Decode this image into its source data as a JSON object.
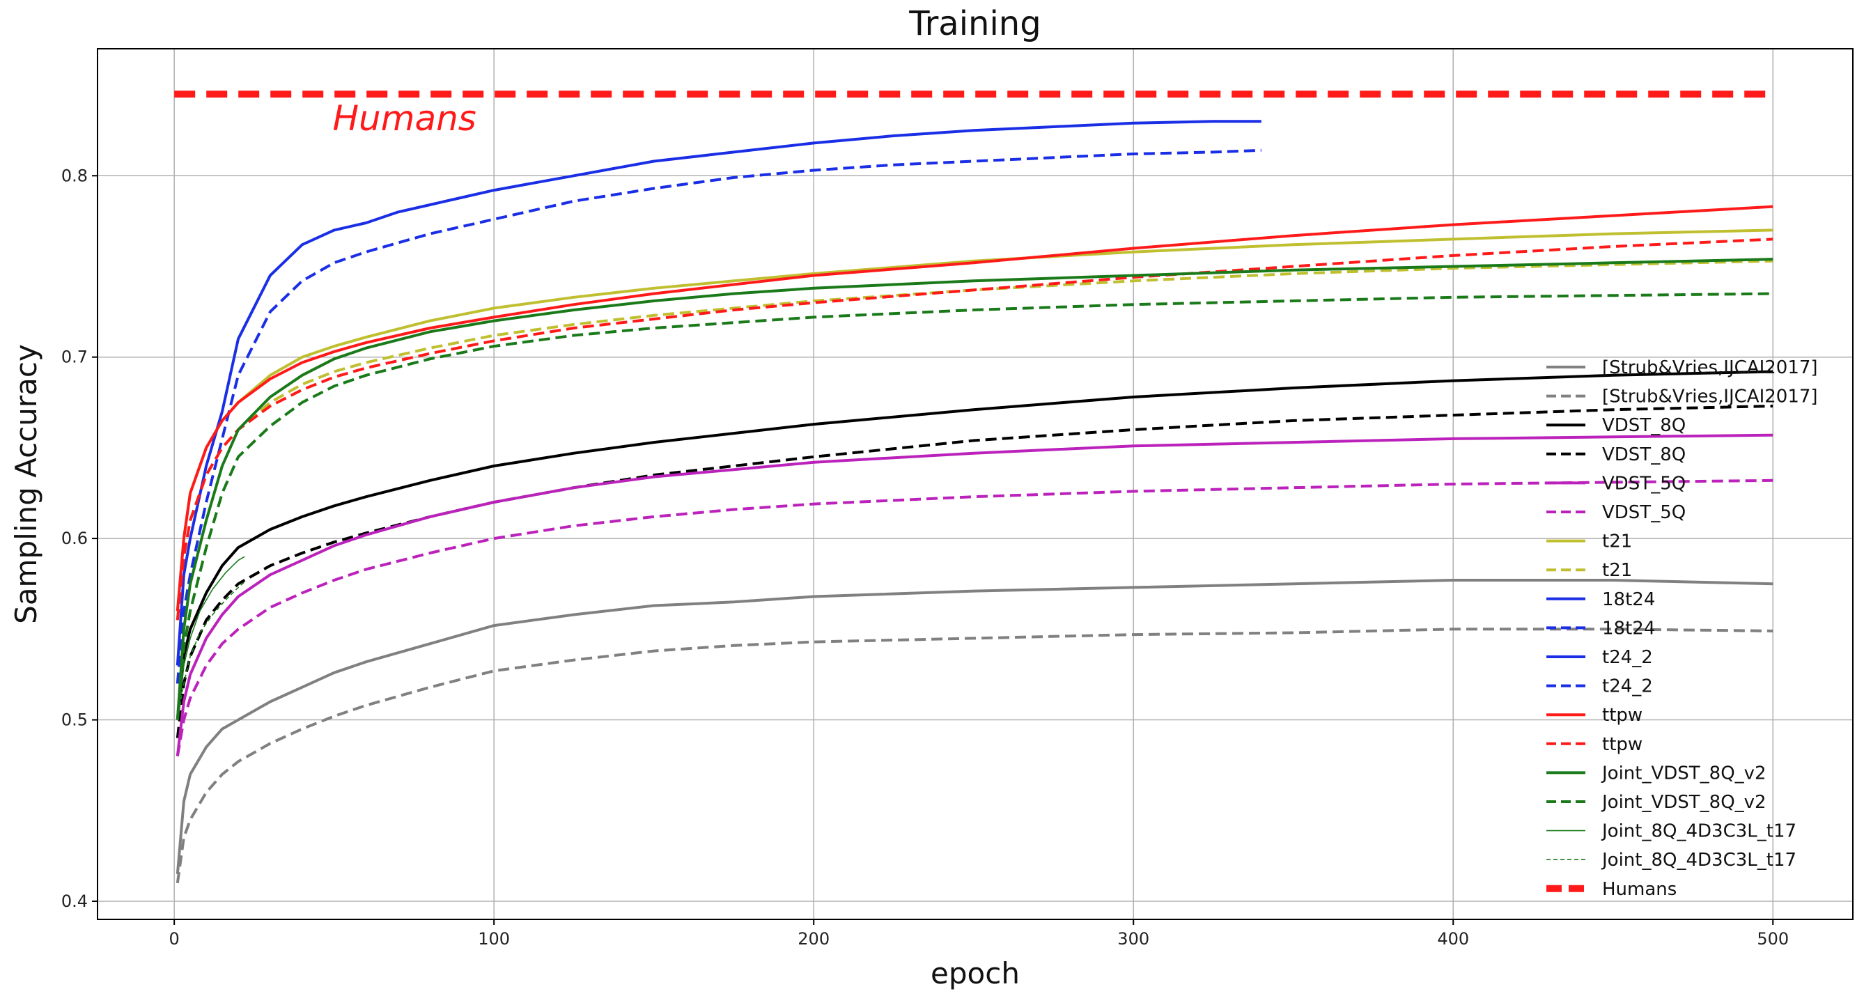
{
  "chart_data": {
    "type": "line",
    "title": "Training",
    "xlabel": "epoch",
    "ylabel": "Sampling Accuracy",
    "xlim": [
      -24,
      525
    ],
    "ylim": [
      0.39,
      0.87
    ],
    "xticks": [
      0,
      100,
      200,
      300,
      400,
      500
    ],
    "xtick_labels": [
      "0",
      "100",
      "200",
      "300",
      "400",
      "500"
    ],
    "yticks": [
      0.4,
      0.5,
      0.6,
      0.7,
      0.8
    ],
    "ytick_labels": [
      "0.4",
      "0.5",
      "0.6",
      "0.7",
      "0.8"
    ],
    "grid": true,
    "legend_position": "right",
    "annotations": [
      {
        "text": "Humans",
        "x": 72,
        "y": 0.825,
        "color": "#ff1a1a"
      }
    ],
    "series": [
      {
        "name": "[Strub&Vries,IJCAI2017]",
        "color": "#808080",
        "style": "solid",
        "width": "normal",
        "x": [
          1,
          3,
          5,
          10,
          15,
          20,
          30,
          40,
          50,
          60,
          80,
          100,
          125,
          150,
          175,
          200,
          250,
          300,
          350,
          400,
          450,
          500
        ],
        "y": [
          0.415,
          0.455,
          0.47,
          0.485,
          0.495,
          0.5,
          0.51,
          0.518,
          0.526,
          0.532,
          0.542,
          0.552,
          0.558,
          0.563,
          0.565,
          0.568,
          0.571,
          0.573,
          0.575,
          0.577,
          0.577,
          0.575
        ]
      },
      {
        "name": "[Strub&Vries,IJCAI2017]",
        "color": "#808080",
        "style": "dashed",
        "width": "normal",
        "x": [
          1,
          3,
          5,
          10,
          15,
          20,
          30,
          40,
          50,
          60,
          80,
          100,
          125,
          150,
          175,
          200,
          250,
          300,
          350,
          400,
          450,
          500
        ],
        "y": [
          0.41,
          0.435,
          0.445,
          0.46,
          0.47,
          0.477,
          0.487,
          0.495,
          0.502,
          0.508,
          0.518,
          0.527,
          0.533,
          0.538,
          0.541,
          0.543,
          0.545,
          0.547,
          0.548,
          0.55,
          0.55,
          0.549
        ]
      },
      {
        "name": "VDST_8Q",
        "color": "#000000",
        "style": "solid",
        "width": "normal",
        "x": [
          1,
          3,
          5,
          10,
          15,
          20,
          30,
          40,
          50,
          60,
          80,
          100,
          125,
          150,
          175,
          200,
          250,
          300,
          350,
          400,
          450,
          500
        ],
        "y": [
          0.5,
          0.535,
          0.55,
          0.57,
          0.585,
          0.595,
          0.605,
          0.612,
          0.618,
          0.623,
          0.632,
          0.64,
          0.647,
          0.653,
          0.658,
          0.663,
          0.671,
          0.678,
          0.683,
          0.687,
          0.69,
          0.692
        ]
      },
      {
        "name": "VDST_8Q",
        "color": "#000000",
        "style": "dashed",
        "width": "normal",
        "x": [
          1,
          3,
          5,
          10,
          15,
          20,
          30,
          40,
          50,
          60,
          80,
          100,
          125,
          150,
          175,
          200,
          250,
          300,
          350,
          400,
          450,
          500
        ],
        "y": [
          0.49,
          0.52,
          0.535,
          0.555,
          0.566,
          0.575,
          0.585,
          0.592,
          0.598,
          0.603,
          0.612,
          0.62,
          0.628,
          0.635,
          0.64,
          0.645,
          0.654,
          0.66,
          0.665,
          0.668,
          0.671,
          0.673
        ]
      },
      {
        "name": "VDST_5Q",
        "color": "#bb22bb",
        "style": "solid",
        "width": "normal",
        "x": [
          1,
          3,
          5,
          10,
          15,
          20,
          30,
          40,
          50,
          60,
          80,
          100,
          125,
          150,
          175,
          200,
          250,
          300,
          350,
          400,
          450,
          500
        ],
        "y": [
          0.48,
          0.51,
          0.525,
          0.545,
          0.558,
          0.568,
          0.58,
          0.588,
          0.596,
          0.602,
          0.612,
          0.62,
          0.628,
          0.634,
          0.638,
          0.642,
          0.647,
          0.651,
          0.653,
          0.655,
          0.656,
          0.657
        ]
      },
      {
        "name": "VDST_5Q",
        "color": "#bb22bb",
        "style": "dashed",
        "width": "normal",
        "x": [
          1,
          3,
          5,
          10,
          15,
          20,
          30,
          40,
          50,
          60,
          80,
          100,
          125,
          150,
          175,
          200,
          250,
          300,
          350,
          400,
          450,
          500
        ],
        "y": [
          0.48,
          0.5,
          0.512,
          0.53,
          0.542,
          0.55,
          0.562,
          0.57,
          0.577,
          0.583,
          0.592,
          0.6,
          0.607,
          0.612,
          0.616,
          0.619,
          0.623,
          0.626,
          0.628,
          0.63,
          0.631,
          0.632
        ]
      },
      {
        "name": "t21",
        "color": "#bfbf30",
        "style": "solid",
        "width": "normal",
        "x": [
          1,
          3,
          5,
          10,
          15,
          20,
          30,
          40,
          50,
          60,
          80,
          100,
          125,
          150,
          175,
          200,
          250,
          300,
          350,
          400,
          450,
          500
        ],
        "y": [
          0.56,
          0.6,
          0.625,
          0.65,
          0.665,
          0.675,
          0.69,
          0.7,
          0.706,
          0.711,
          0.72,
          0.727,
          0.733,
          0.738,
          0.742,
          0.746,
          0.753,
          0.758,
          0.762,
          0.765,
          0.768,
          0.77
        ]
      },
      {
        "name": "t21",
        "color": "#bfbf30",
        "style": "dashed",
        "width": "normal",
        "x": [
          1,
          3,
          5,
          10,
          15,
          20,
          30,
          40,
          50,
          60,
          80,
          100,
          125,
          150,
          175,
          200,
          250,
          300,
          350,
          400,
          450,
          500
        ],
        "y": [
          0.555,
          0.59,
          0.61,
          0.635,
          0.65,
          0.66,
          0.675,
          0.685,
          0.692,
          0.697,
          0.705,
          0.712,
          0.718,
          0.723,
          0.727,
          0.731,
          0.737,
          0.742,
          0.746,
          0.749,
          0.751,
          0.753
        ]
      },
      {
        "name": "18t24",
        "color": "#1a2ee6",
        "style": "solid",
        "width": "normal",
        "x": [
          1,
          3,
          5,
          10,
          15,
          20,
          30,
          40,
          50,
          60,
          70,
          80,
          90,
          100,
          125,
          150,
          175,
          200,
          225,
          250,
          275,
          300,
          325,
          340
        ],
        "y": [
          0.53,
          0.58,
          0.6,
          0.64,
          0.67,
          0.71,
          0.745,
          0.762,
          0.77,
          0.774,
          0.78,
          0.784,
          0.788,
          0.792,
          0.8,
          0.808,
          0.813,
          0.818,
          0.822,
          0.825,
          0.827,
          0.829,
          0.83,
          0.83
        ]
      },
      {
        "name": "18t24",
        "color": "#1a2ee6",
        "style": "dashed",
        "width": "normal",
        "x": [
          1,
          3,
          5,
          10,
          15,
          20,
          30,
          40,
          50,
          60,
          70,
          80,
          90,
          100,
          125,
          150,
          175,
          200,
          225,
          250,
          275,
          300,
          325,
          340
        ],
        "y": [
          0.52,
          0.56,
          0.58,
          0.62,
          0.655,
          0.69,
          0.725,
          0.742,
          0.752,
          0.758,
          0.763,
          0.768,
          0.772,
          0.776,
          0.786,
          0.793,
          0.799,
          0.803,
          0.806,
          0.808,
          0.81,
          0.812,
          0.813,
          0.814
        ]
      },
      {
        "name": "t24_2",
        "color": "#1a2ee6",
        "style": "solid",
        "width": "normal",
        "x": [],
        "y": []
      },
      {
        "name": "t24_2",
        "color": "#1a2ee6",
        "style": "dashed",
        "width": "normal",
        "x": [],
        "y": []
      },
      {
        "name": "ttpw",
        "color": "#ff1a1a",
        "style": "solid",
        "width": "normal",
        "x": [
          1,
          3,
          5,
          10,
          15,
          20,
          30,
          40,
          50,
          60,
          80,
          100,
          125,
          150,
          175,
          200,
          250,
          300,
          350,
          400,
          450,
          500
        ],
        "y": [
          0.56,
          0.6,
          0.625,
          0.65,
          0.665,
          0.675,
          0.688,
          0.697,
          0.703,
          0.708,
          0.716,
          0.722,
          0.729,
          0.735,
          0.74,
          0.745,
          0.752,
          0.76,
          0.767,
          0.773,
          0.778,
          0.783
        ]
      },
      {
        "name": "ttpw",
        "color": "#ff1a1a",
        "style": "dashed",
        "width": "normal",
        "x": [
          1,
          3,
          5,
          10,
          15,
          20,
          30,
          40,
          50,
          60,
          80,
          100,
          125,
          150,
          175,
          200,
          250,
          300,
          350,
          400,
          450,
          500
        ],
        "y": [
          0.555,
          0.59,
          0.61,
          0.635,
          0.65,
          0.66,
          0.673,
          0.682,
          0.689,
          0.694,
          0.702,
          0.709,
          0.716,
          0.721,
          0.726,
          0.73,
          0.737,
          0.744,
          0.75,
          0.756,
          0.761,
          0.765
        ]
      },
      {
        "name": "Joint_VDST_8Q_v2",
        "color": "#1a7a1a",
        "style": "solid",
        "width": "normal",
        "x": [
          1,
          3,
          5,
          10,
          15,
          20,
          30,
          40,
          50,
          60,
          80,
          100,
          125,
          150,
          175,
          200,
          250,
          300,
          350,
          400,
          450,
          500
        ],
        "y": [
          0.5,
          0.55,
          0.575,
          0.61,
          0.64,
          0.66,
          0.678,
          0.69,
          0.699,
          0.705,
          0.714,
          0.72,
          0.726,
          0.731,
          0.735,
          0.738,
          0.742,
          0.745,
          0.748,
          0.75,
          0.752,
          0.754
        ]
      },
      {
        "name": "Joint_VDST_8Q_v2",
        "color": "#1a7a1a",
        "style": "dashed",
        "width": "normal",
        "x": [
          1,
          3,
          5,
          10,
          15,
          20,
          30,
          40,
          50,
          60,
          80,
          100,
          125,
          150,
          175,
          200,
          250,
          300,
          350,
          400,
          450,
          500
        ],
        "y": [
          0.5,
          0.54,
          0.56,
          0.595,
          0.625,
          0.645,
          0.662,
          0.675,
          0.684,
          0.69,
          0.699,
          0.706,
          0.712,
          0.716,
          0.719,
          0.722,
          0.726,
          0.729,
          0.731,
          0.733,
          0.734,
          0.735
        ]
      },
      {
        "name": "Joint_8Q_4D3C3L_t17",
        "color": "#1a7a1a",
        "style": "solid",
        "width": "thin",
        "x": [
          1,
          3,
          5,
          8,
          12,
          16,
          20,
          22
        ],
        "y": [
          0.5,
          0.53,
          0.545,
          0.56,
          0.572,
          0.581,
          0.588,
          0.59
        ]
      },
      {
        "name": "Joint_8Q_4D3C3L_t17",
        "color": "#1a7a1a",
        "style": "dashed",
        "width": "thin",
        "x": [
          1,
          3,
          5,
          8,
          12,
          16,
          20,
          22
        ],
        "y": [
          0.5,
          0.52,
          0.535,
          0.548,
          0.558,
          0.566,
          0.573,
          0.576
        ]
      },
      {
        "name": "Humans",
        "color": "#ff1a1a",
        "style": "dashed",
        "width": "thick",
        "x": [
          0,
          500
        ],
        "y": [
          0.845,
          0.845
        ]
      }
    ]
  }
}
